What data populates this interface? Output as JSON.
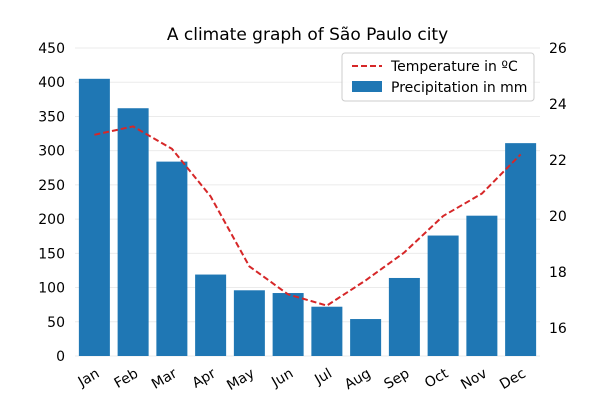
{
  "chart_data": {
    "type": "bar",
    "title": "A climate graph of São Paulo city",
    "categories": [
      "Jan",
      "Feb",
      "Mar",
      "Apr",
      "May",
      "Jun",
      "Jul",
      "Aug",
      "Sep",
      "Oct",
      "Nov",
      "Dec"
    ],
    "series": [
      {
        "name": "Precipitation in mm",
        "type": "bar",
        "axis": "left",
        "color": "#1f77b4",
        "values": [
          405,
          362,
          284,
          119,
          96,
          92,
          72,
          54,
          114,
          176,
          205,
          311
        ]
      },
      {
        "name": "Temperature in ºC",
        "type": "line",
        "style": "dashed",
        "axis": "right",
        "color": "#d62728",
        "values": [
          22.9,
          23.2,
          22.4,
          20.7,
          18.2,
          17.2,
          16.8,
          17.7,
          18.7,
          20.0,
          20.8,
          22.2
        ]
      }
    ],
    "y_left": {
      "ylim": [
        0,
        450
      ],
      "ticks": [
        0,
        50,
        100,
        150,
        200,
        250,
        300,
        350,
        400,
        450
      ]
    },
    "y_right": {
      "ylim": [
        15.0,
        26.0
      ],
      "ticks": [
        16,
        18,
        20,
        22,
        24,
        26
      ]
    },
    "grid": true,
    "legend_position": "top-right"
  }
}
